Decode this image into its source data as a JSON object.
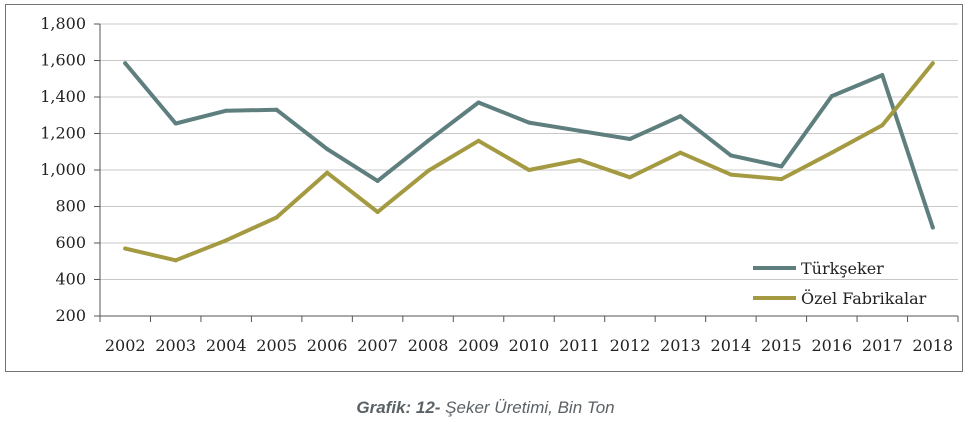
{
  "chart_data": {
    "type": "line",
    "categories": [
      "2002",
      "2003",
      "2004",
      "2005",
      "2006",
      "2007",
      "2008",
      "2009",
      "2010",
      "2011",
      "2012",
      "2013",
      "2014",
      "2015",
      "2016",
      "2017",
      "2018"
    ],
    "y_ticks": [
      "200",
      "400",
      "600",
      "800",
      "1,000",
      "1,200",
      "1,400",
      "1,600",
      "1,800"
    ],
    "ylim": [
      200,
      1800
    ],
    "legend_position": "bottom-right",
    "series": [
      {
        "name": "Türkşeker",
        "color": "#5f7f7f",
        "values": [
          1585,
          1255,
          1325,
          1330,
          1115,
          940,
          1160,
          1370,
          1260,
          1215,
          1170,
          1295,
          1080,
          1020,
          1405,
          1520,
          685
        ]
      },
      {
        "name": "Özel Fabrikalar",
        "color": "#a49a42",
        "values": [
          570,
          505,
          615,
          740,
          985,
          770,
          995,
          1160,
          1000,
          1055,
          960,
          1095,
          975,
          950,
          1095,
          1245,
          1585
        ]
      }
    ]
  },
  "caption": {
    "label": "Grafik: 12-",
    "text": " Şeker Üretimi, Bin Ton"
  }
}
